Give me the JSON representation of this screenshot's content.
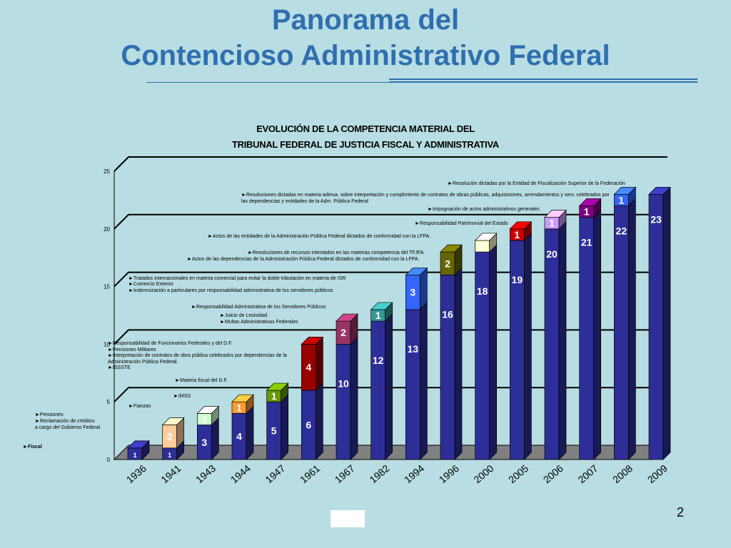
{
  "header": {
    "title_line1": "Panorama del",
    "title_line2": "Contencioso Administrativo Federal"
  },
  "page_number": "2",
  "chart_data": {
    "type": "bar",
    "title_line1": "EVOLUCIÓN DE LA COMPETENCIA MATERIAL DEL",
    "title_line2": "TRIBUNAL FEDERAL DE JUSTICIA FISCAL Y ADMINISTRATIVA",
    "categories": [
      "1936",
      "1941",
      "1943",
      "1944",
      "1947",
      "1961",
      "1967",
      "1982",
      "1994",
      "1996",
      "2000",
      "2005",
      "2006",
      "2007",
      "2008",
      "2009"
    ],
    "series": [
      {
        "values": [
          1,
          1,
          3,
          4,
          5,
          6,
          10,
          12,
          13,
          16,
          18,
          19,
          20,
          21,
          22,
          23
        ],
        "color": "#2e2e99"
      },
      {
        "values": [
          0,
          2,
          1,
          1,
          1,
          4,
          2,
          1,
          3,
          2,
          1,
          1,
          1,
          1,
          1,
          0
        ],
        "colors": [
          "#2e2e99",
          "#ffcc99",
          "#ccffcc",
          "#ff9933",
          "#669900",
          "#990000",
          "#993366",
          "#339999",
          "#3366ff",
          "#666600",
          "#ffffcc",
          "#cc0000",
          "#cc99ff",
          "#800080",
          "#3366ff",
          "#2e2e99"
        ]
      }
    ],
    "base_labels": [
      "1",
      "1",
      "3",
      "4",
      "5",
      "6",
      "10",
      "12",
      "13",
      "16",
      "18",
      "19",
      "20",
      "21",
      "22",
      "23"
    ],
    "increment_labels": [
      "",
      "2",
      "1",
      "1",
      "1",
      "4",
      "2",
      "1",
      "3",
      "2",
      "1",
      "1",
      "1",
      "1",
      "1",
      ""
    ],
    "y_ticks": [
      "0",
      "5",
      "10",
      "15",
      "20",
      "25"
    ],
    "ylim": [
      0,
      25
    ],
    "grid": true,
    "annotations": [
      "►Fiscal",
      "►Pensiones",
      "►Reclamación de créditos",
      "a cargo del Gobierno Federal",
      "►Fianzas",
      "►IMSS",
      "►Materia fiscal del D.F.",
      "►Responsabilidad de Funcionarios Federales y del D.F.",
      "►Pensiones Militares",
      "►Interpretación de contratos de obra pública celebrados por dependencias de la",
      "Administración Pública Federal.",
      "►ISSSTE",
      "►Juicio de Lesividad",
      "►Multas Administrativas Federales",
      "►Responsabilidad Administrativa de los Servidores Públicos",
      "►Tratados internacionales en materia comercial para evitar la doble tributación en materia de ISR",
      "►Comercio Exterior",
      "►Indemnización a particulares por responsabilidad administrativa de los servidores públicos",
      "►Actos de las dependencias de la Administración Pública Federal dictados de conformidad con la LFPA.",
      "►Resoluciones de recursos intentados en las materias competencia del TFJFA",
      "►Actos de las entidades de la Administración Pública Federal dictados de conformidad con la LFPA.",
      "►Responsabilidad Patrimonial del Estado",
      "►Impugnación de actos administrativos generales",
      "►Resoluciones dictadas en materia admva. sobre interpretación y cumplimiento de contratos de obras públicas, adquisiciones, arrendamientos y serv. celebrados por",
      "las dependencias y entidades de la Adm. Pública Federal",
      "►Resolución dictadas por la Entidad de Fiscalización Superior de la Federación"
    ]
  }
}
